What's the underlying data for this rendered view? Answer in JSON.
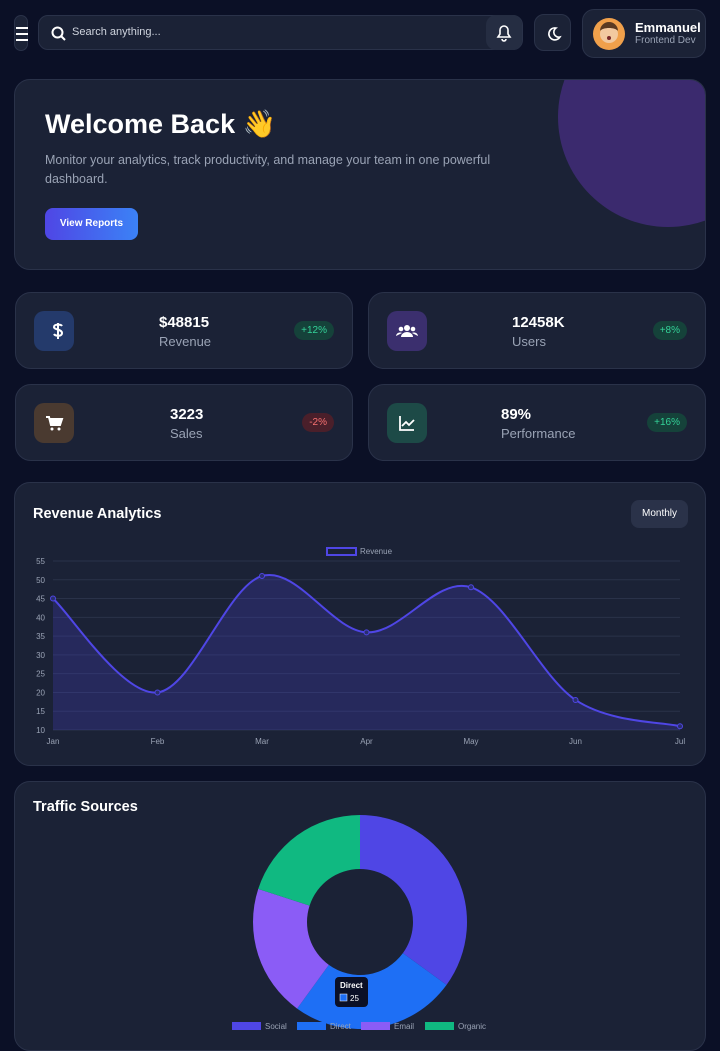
{
  "header": {
    "search_placeholder": "Search anything...",
    "user_name": "Emmanuel",
    "user_role": "Frontend Dev"
  },
  "hero": {
    "title": "Welcome Back 👋",
    "text": "Monitor your analytics, track productivity, and manage your team in one powerful dashboard.",
    "button": "View Reports"
  },
  "stats": [
    {
      "value": "$48815",
      "label": "Revenue",
      "change": "+12%"
    },
    {
      "value": "12458K",
      "label": "Users",
      "change": "+8%"
    },
    {
      "value": "3223",
      "label": "Sales",
      "change": "-2%"
    },
    {
      "value": "89%",
      "label": "Performance",
      "change": "+16%"
    }
  ],
  "revenue": {
    "title": "Revenue Analytics",
    "button": "Monthly",
    "chart": {
      "type": "line",
      "categories": [
        "Jan",
        "Feb",
        "Mar",
        "Apr",
        "May",
        "Jun",
        "Jul"
      ],
      "series": [
        {
          "name": "Revenue",
          "color": "#4f46e5",
          "values": [
            45,
            20,
            51,
            36,
            48,
            18,
            11
          ]
        }
      ],
      "ylim": [
        10,
        55
      ],
      "yticks": [
        10,
        15,
        20,
        25,
        30,
        35,
        40,
        45,
        50,
        55
      ],
      "grid": true
    }
  },
  "traffic": {
    "title": "Traffic Sources",
    "chart": {
      "type": "pie",
      "categories": [
        "Social",
        "Direct",
        "Email",
        "Organic"
      ],
      "values": [
        35,
        25,
        20,
        20
      ],
      "colors": [
        "#4f46e5",
        "#1e6ff5",
        "#8b5cf6",
        "#10b981"
      ]
    }
  }
}
